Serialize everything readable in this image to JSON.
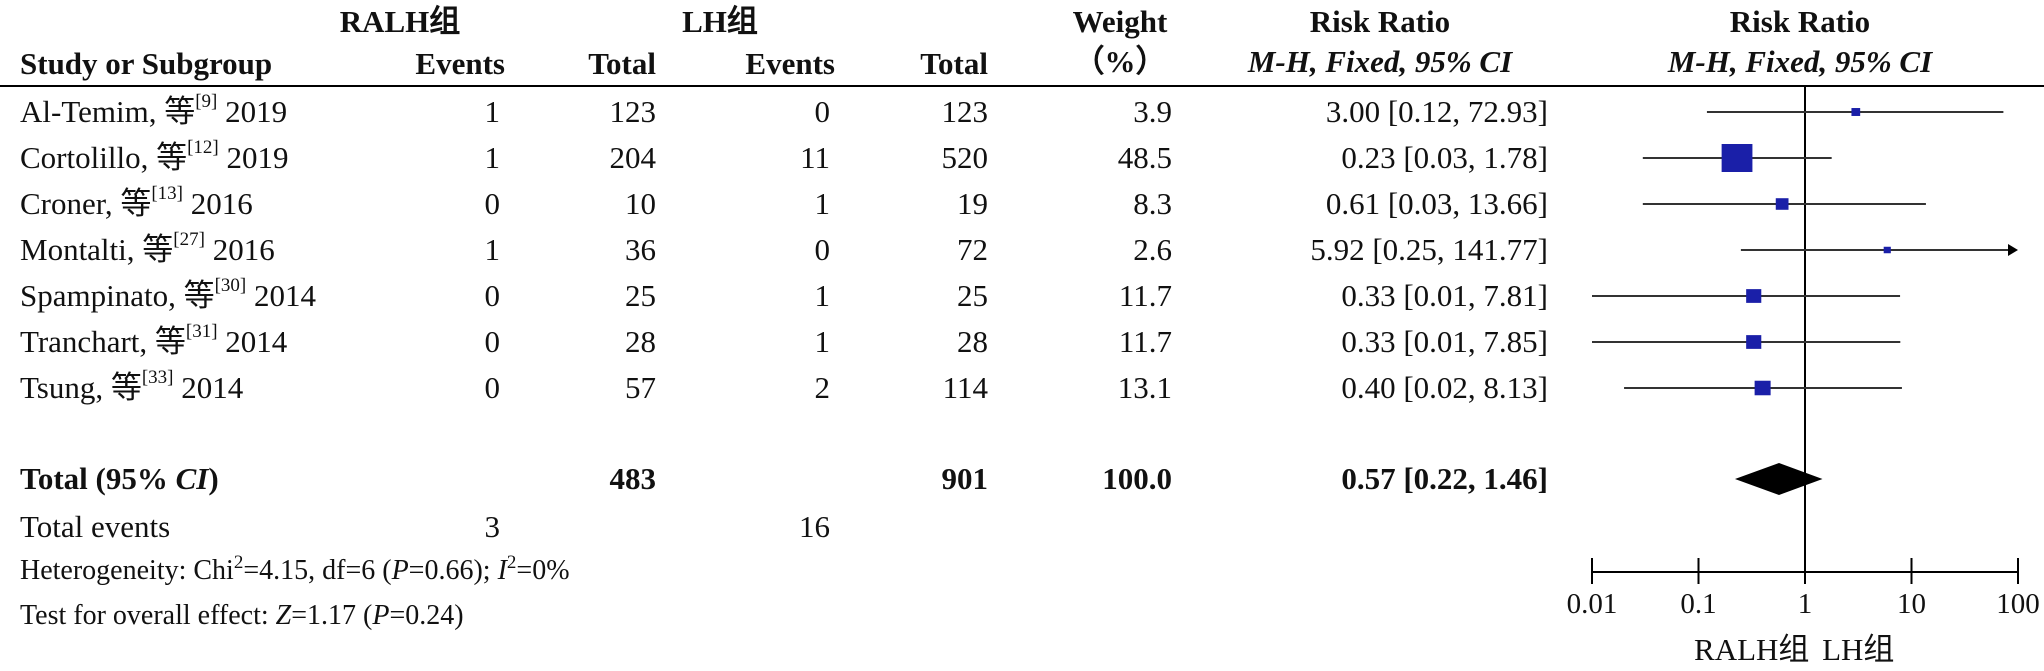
{
  "header": {
    "group1": "RALH组",
    "group2": "LH组",
    "weight_line1": "Weight",
    "weight_line2": "（%）",
    "rr_title": "Risk Ratio",
    "rr_method": "M-H, Fixed, 95% CI",
    "plot_title": "Risk Ratio",
    "plot_method": "M-H, Fixed, 95% CI",
    "col_study": "Study or Subgroup",
    "col_events1": "Events",
    "col_total1": "Total",
    "col_events2": "Events",
    "col_total2": "Total"
  },
  "chart_data": {
    "type": "forest",
    "x_scale": "log",
    "xlim": [
      0.01,
      100
    ],
    "x_ticks": [
      "0.01",
      "0.1",
      "1",
      "10",
      "100"
    ],
    "x_label_left": "RALH组",
    "x_label_right": "LH组",
    "reference_line": 1,
    "studies": [
      {
        "author": "Al-Temim, 等",
        "ref": "[9]",
        "year": "2019",
        "e1": "1",
        "t1": "123",
        "e2": "0",
        "t2": "123",
        "weight": "3.9",
        "rr_text": "3.00 [0.12, 72.93]",
        "rr": 3.0,
        "lo": 0.12,
        "hi": 72.93
      },
      {
        "author": "Cortolillo, 等",
        "ref": "[12]",
        "year": "2019",
        "e1": "1",
        "t1": "204",
        "e2": "11",
        "t2": "520",
        "weight": "48.5",
        "rr_text": "0.23 [0.03, 1.78]",
        "rr": 0.23,
        "lo": 0.03,
        "hi": 1.78
      },
      {
        "author": "Croner, 等",
        "ref": "[13]",
        "year": "2016",
        "e1": "0",
        "t1": "10",
        "e2": "1",
        "t2": "19",
        "weight": "8.3",
        "rr_text": "0.61 [0.03, 13.66]",
        "rr": 0.61,
        "lo": 0.03,
        "hi": 13.66
      },
      {
        "author": "Montalti, 等",
        "ref": "[27]",
        "year": "2016",
        "e1": "1",
        "t1": "36",
        "e2": "0",
        "t2": "72",
        "weight": "2.6",
        "rr_text": "5.92 [0.25, 141.77]",
        "rr": 5.92,
        "lo": 0.25,
        "hi": 141.77
      },
      {
        "author": "Spampinato, 等",
        "ref": "[30]",
        "year": "2014",
        "e1": "0",
        "t1": "25",
        "e2": "1",
        "t2": "25",
        "weight": "11.7",
        "rr_text": "0.33 [0.01, 7.81]",
        "rr": 0.33,
        "lo": 0.01,
        "hi": 7.81
      },
      {
        "author": "Tranchart, 等",
        "ref": "[31]",
        "year": "2014",
        "e1": "0",
        "t1": "28",
        "e2": "1",
        "t2": "28",
        "weight": "11.7",
        "rr_text": "0.33 [0.01, 7.85]",
        "rr": 0.33,
        "lo": 0.01,
        "hi": 7.85
      },
      {
        "author": "Tsung, 等",
        "ref": "[33]",
        "year": "2014",
        "e1": "0",
        "t1": "57",
        "e2": "2",
        "t2": "114",
        "weight": "13.1",
        "rr_text": "0.40 [0.02, 8.13]",
        "rr": 0.4,
        "lo": 0.02,
        "hi": 8.13
      }
    ],
    "total": {
      "label_pre": "Total (95% ",
      "label_ci": "CI",
      "label_post": ")",
      "t1": "483",
      "t2": "901",
      "weight": "100.0",
      "rr_text": "0.57 [0.22, 1.46]",
      "rr": 0.57,
      "lo": 0.22,
      "hi": 1.46
    },
    "events": {
      "label": "Total events",
      "e1": "3",
      "e2": "16"
    },
    "heterogeneity": {
      "prefix": "Heterogeneity: Chi",
      "exp": "2",
      "rest": "=4.15, df=6 (",
      "p": "P",
      "pval": "=0.66); ",
      "i": "I",
      "iexp": "2",
      "ival": "=0%"
    },
    "overall": {
      "prefix": "Test for overall effect: ",
      "z": "Z",
      "zval": "=1.17 (",
      "p": "P",
      "pval": "=0.24)"
    }
  },
  "colors": {
    "marker": "#1a1fa8",
    "diamond": "#000000",
    "line": "#000000",
    "ci_line": "#333333"
  }
}
